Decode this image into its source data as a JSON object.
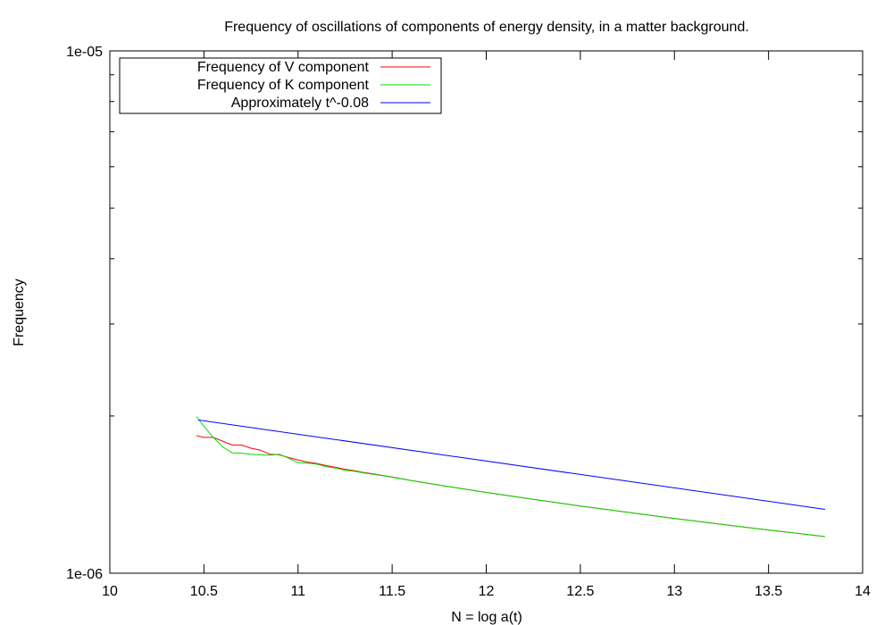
{
  "chart_data": {
    "type": "line",
    "title": "Frequency of oscillations of components of energy density, in a matter background.",
    "xlabel": "N = log a(t)",
    "ylabel": "Frequency",
    "xlim": [
      10,
      14
    ],
    "ylim": [
      1e-06,
      1e-05
    ],
    "yscale": "log",
    "grid": false,
    "legend_position": "top-left",
    "x_ticks": [
      10,
      10.5,
      11,
      11.5,
      12,
      12.5,
      13,
      13.5,
      14
    ],
    "x_tick_labels": [
      "10",
      "10.5",
      "11",
      "11.5",
      "12",
      "12.5",
      "13",
      "13.5",
      "14"
    ],
    "y_major_ticks": [
      1e-06,
      1e-05
    ],
    "y_tick_labels": [
      "1e-06",
      "1e-05"
    ],
    "y_minor_ticks": [
      2e-06,
      3e-06,
      4e-06,
      5e-06,
      6e-06,
      7e-06,
      8e-06,
      9e-06
    ],
    "series": [
      {
        "name": "Frequency of V component",
        "color": "#ff0000",
        "x": [
          10.46,
          10.5,
          10.55,
          10.6,
          10.65,
          10.7,
          10.75,
          10.8,
          10.85,
          10.9,
          10.95,
          11.0,
          11.05,
          11.1,
          11.15,
          11.2,
          11.25,
          11.3,
          11.35,
          11.4,
          11.45,
          11.5,
          11.6,
          11.8,
          12.0,
          12.25,
          12.5,
          12.75,
          13.0,
          13.25,
          13.5,
          13.8
        ],
        "y": [
          1.835e-06,
          1.82e-06,
          1.82e-06,
          1.79e-06,
          1.76e-06,
          1.76e-06,
          1.735e-06,
          1.72e-06,
          1.69e-06,
          1.685e-06,
          1.665e-06,
          1.648e-06,
          1.632e-06,
          1.622e-06,
          1.607e-06,
          1.595e-06,
          1.581e-06,
          1.571e-06,
          1.559e-06,
          1.549e-06,
          1.539e-06,
          1.528e-06,
          1.505e-06,
          1.465e-06,
          1.428e-06,
          1.385e-06,
          1.345e-06,
          1.308e-06,
          1.273e-06,
          1.24e-06,
          1.21e-06,
          1.175e-06
        ]
      },
      {
        "name": "Frequency of K component",
        "color": "#00dd00",
        "x": [
          10.46,
          10.5,
          10.55,
          10.6,
          10.65,
          10.7,
          10.75,
          10.8,
          10.85,
          10.9,
          10.95,
          11.0,
          11.05,
          11.1,
          11.15,
          11.2,
          11.25,
          11.3,
          11.35,
          11.4,
          11.45,
          11.5,
          11.6,
          11.8,
          12.0,
          12.25,
          12.5,
          12.75,
          13.0,
          13.25,
          13.5,
          13.8
        ],
        "y": [
          1.995e-06,
          1.91e-06,
          1.82e-06,
          1.745e-06,
          1.7e-06,
          1.697e-06,
          1.69e-06,
          1.685e-06,
          1.682e-06,
          1.69e-06,
          1.66e-06,
          1.628e-06,
          1.624e-06,
          1.617e-06,
          1.6e-06,
          1.59e-06,
          1.574e-06,
          1.567e-06,
          1.556e-06,
          1.546e-06,
          1.537e-06,
          1.527e-06,
          1.505e-06,
          1.465e-06,
          1.428e-06,
          1.385e-06,
          1.345e-06,
          1.308e-06,
          1.273e-06,
          1.24e-06,
          1.21e-06,
          1.175e-06
        ]
      },
      {
        "name": "Approximately t^-0.08",
        "color": "#0000ff",
        "x": [
          10.47,
          13.8
        ],
        "y": [
          1.965e-06,
          1.325e-06
        ]
      }
    ]
  }
}
